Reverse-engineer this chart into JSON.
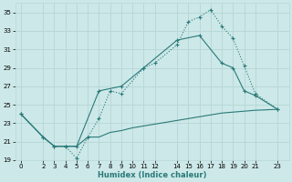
{
  "xlabel": "Humidex (Indice chaleur)",
  "bg_color": "#cde8e8",
  "grid_color": "#b8d8d8",
  "line_color": "#2a7a7a",
  "xlim": [
    -0.5,
    24
  ],
  "ylim": [
    19,
    36
  ],
  "yticks": [
    19,
    21,
    23,
    25,
    27,
    29,
    31,
    33,
    35
  ],
  "xticks": [
    0,
    2,
    3,
    4,
    5,
    6,
    7,
    8,
    9,
    10,
    11,
    12,
    14,
    15,
    16,
    17,
    18,
    19,
    20,
    21,
    23
  ],
  "line1_x": [
    0,
    2,
    3,
    4,
    5,
    6,
    7,
    8,
    9,
    11,
    12,
    14,
    15,
    16,
    17,
    18,
    19,
    20,
    21,
    23
  ],
  "line1_y": [
    24.0,
    21.5,
    20.5,
    20.5,
    19.2,
    21.5,
    23.5,
    26.5,
    26.2,
    29.0,
    29.5,
    31.5,
    34.0,
    34.5,
    35.3,
    33.5,
    32.2,
    29.2,
    26.2,
    24.5
  ],
  "line2_x": [
    0,
    2,
    3,
    4,
    5,
    7,
    9,
    11,
    14,
    16,
    18,
    19,
    20,
    21,
    23
  ],
  "line2_y": [
    24.0,
    21.5,
    20.5,
    20.5,
    20.5,
    26.5,
    27.0,
    29.0,
    32.0,
    32.5,
    29.5,
    29.0,
    26.5,
    26.0,
    24.5
  ],
  "line3_x": [
    0,
    2,
    3,
    4,
    5,
    6,
    7,
    8,
    9,
    10,
    11,
    12,
    14,
    15,
    16,
    17,
    18,
    19,
    20,
    21,
    23
  ],
  "line3_y": [
    24.0,
    21.5,
    20.5,
    20.5,
    20.5,
    21.5,
    21.5,
    22.0,
    22.2,
    22.5,
    22.7,
    22.9,
    23.3,
    23.5,
    23.7,
    23.9,
    24.1,
    24.2,
    24.3,
    24.4,
    24.5
  ]
}
